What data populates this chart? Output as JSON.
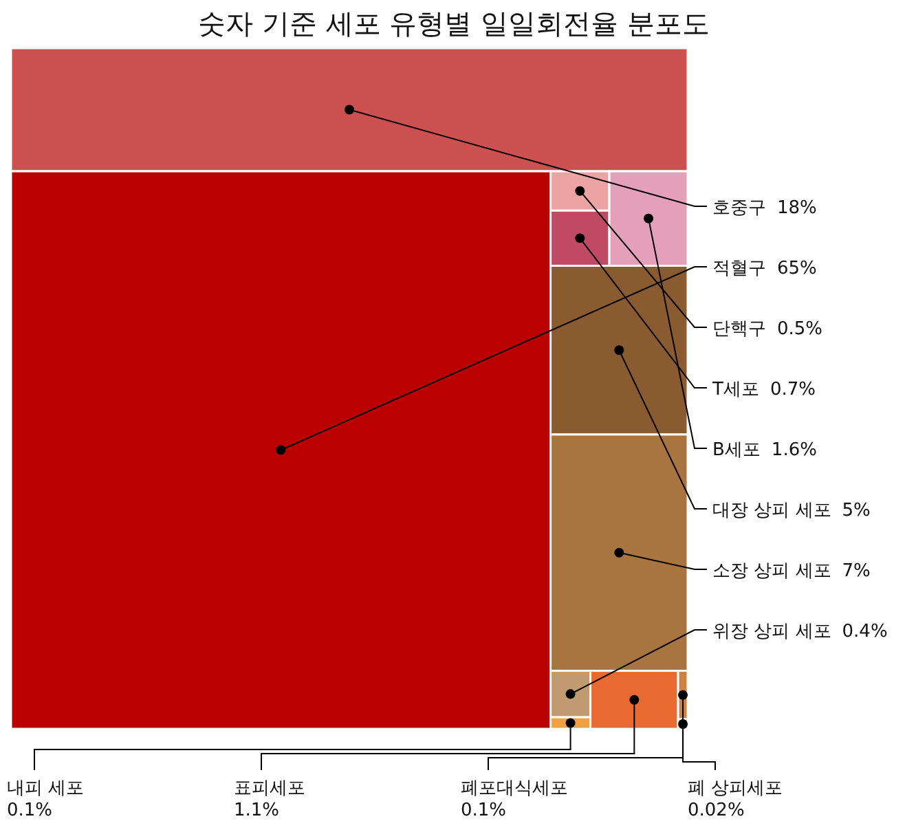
{
  "chart_data": {
    "type": "other",
    "title": "숫자 기준 세포 유형별 일일회전율 분포도",
    "categories": [
      "호중구",
      "적혈구",
      "단핵구",
      "T세포",
      "B세포",
      "대장 상피 세포",
      "소장 상피 세포",
      "위장 상피 세포",
      "내피 세포",
      "표피세포",
      "폐포대식세포",
      "폐 상피세포"
    ],
    "values": [
      18,
      65,
      0.5,
      0.7,
      1.6,
      5,
      7,
      0.4,
      0.1,
      1.1,
      0.1,
      0.02
    ],
    "value_labels": [
      "18%",
      "65%",
      "0.5%",
      "0.7%",
      "1.6%",
      "5%",
      "7%",
      "0.4%",
      "0.1%",
      "1.1%",
      "0.1%",
      "0.02%"
    ],
    "colors": [
      "#cc5050",
      "#bb0000",
      "#eba3a3",
      "#c04a64",
      "#e4a0b8",
      "#8a5a30",
      "#a87440",
      "#c09a70",
      "#f0a040",
      "#e86a30",
      "#d08040",
      "#b08050"
    ]
  }
}
